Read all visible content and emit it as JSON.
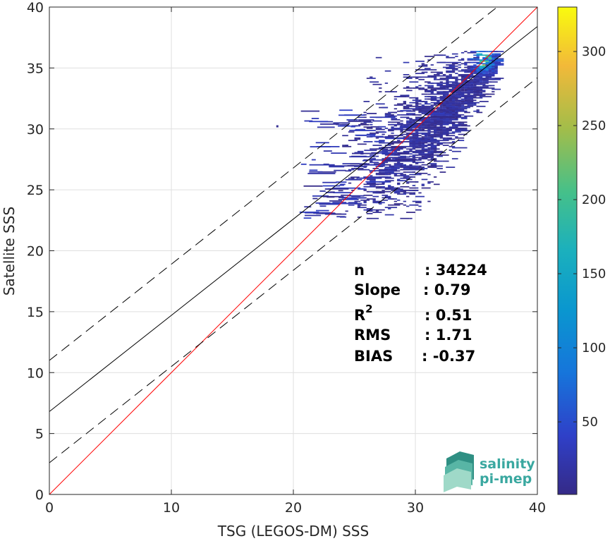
{
  "chart_data": {
    "type": "heatmap",
    "xlabel": "TSG (LEGOS-DM) SSS",
    "ylabel": "Satellite SSS",
    "xlim": [
      0,
      40
    ],
    "ylim": [
      0,
      40
    ],
    "xticks": [
      "0",
      "10",
      "20",
      "30",
      "40"
    ],
    "yticks": [
      "0",
      "5",
      "10",
      "15",
      "20",
      "25",
      "30",
      "35",
      "40"
    ],
    "grid": true,
    "colorbar": {
      "range": [
        1,
        330
      ],
      "ticks": [
        "50",
        "100",
        "150",
        "200",
        "250",
        "300"
      ],
      "colormap": "parula"
    },
    "lines": [
      {
        "label": "1:1",
        "intercept": 0,
        "slope": 1,
        "style": "solid",
        "color": "#ff0000"
      },
      {
        "label": "regression",
        "intercept": 6.8,
        "slope": 0.79,
        "style": "solid",
        "color": "#000000"
      },
      {
        "label": "upper bound",
        "intercept": 11.0,
        "slope": 0.79,
        "style": "dashed",
        "color": "#000000"
      },
      {
        "label": "lower bound",
        "intercept": 2.6,
        "slope": 0.79,
        "style": "dashed",
        "color": "#000000"
      }
    ],
    "density_summary": {
      "x_range": [
        18.6,
        36.5
      ],
      "y_range": [
        22.6,
        36.5
      ],
      "peak_x": 35.5,
      "peak_y": 35.6,
      "peak_count": 330
    },
    "stats": [
      {
        "label": "n",
        "value": ": 34224"
      },
      {
        "label": "Slope",
        "value": ": 0.79"
      },
      {
        "label": "R",
        "sup": "2",
        "value": ": 0.51"
      },
      {
        "label": "RMS",
        "value": ": 1.71"
      },
      {
        "label": "BIAS",
        "value": ": -0.37"
      }
    ]
  },
  "logo": {
    "line1": "salinity",
    "line2": "pi-mep"
  }
}
